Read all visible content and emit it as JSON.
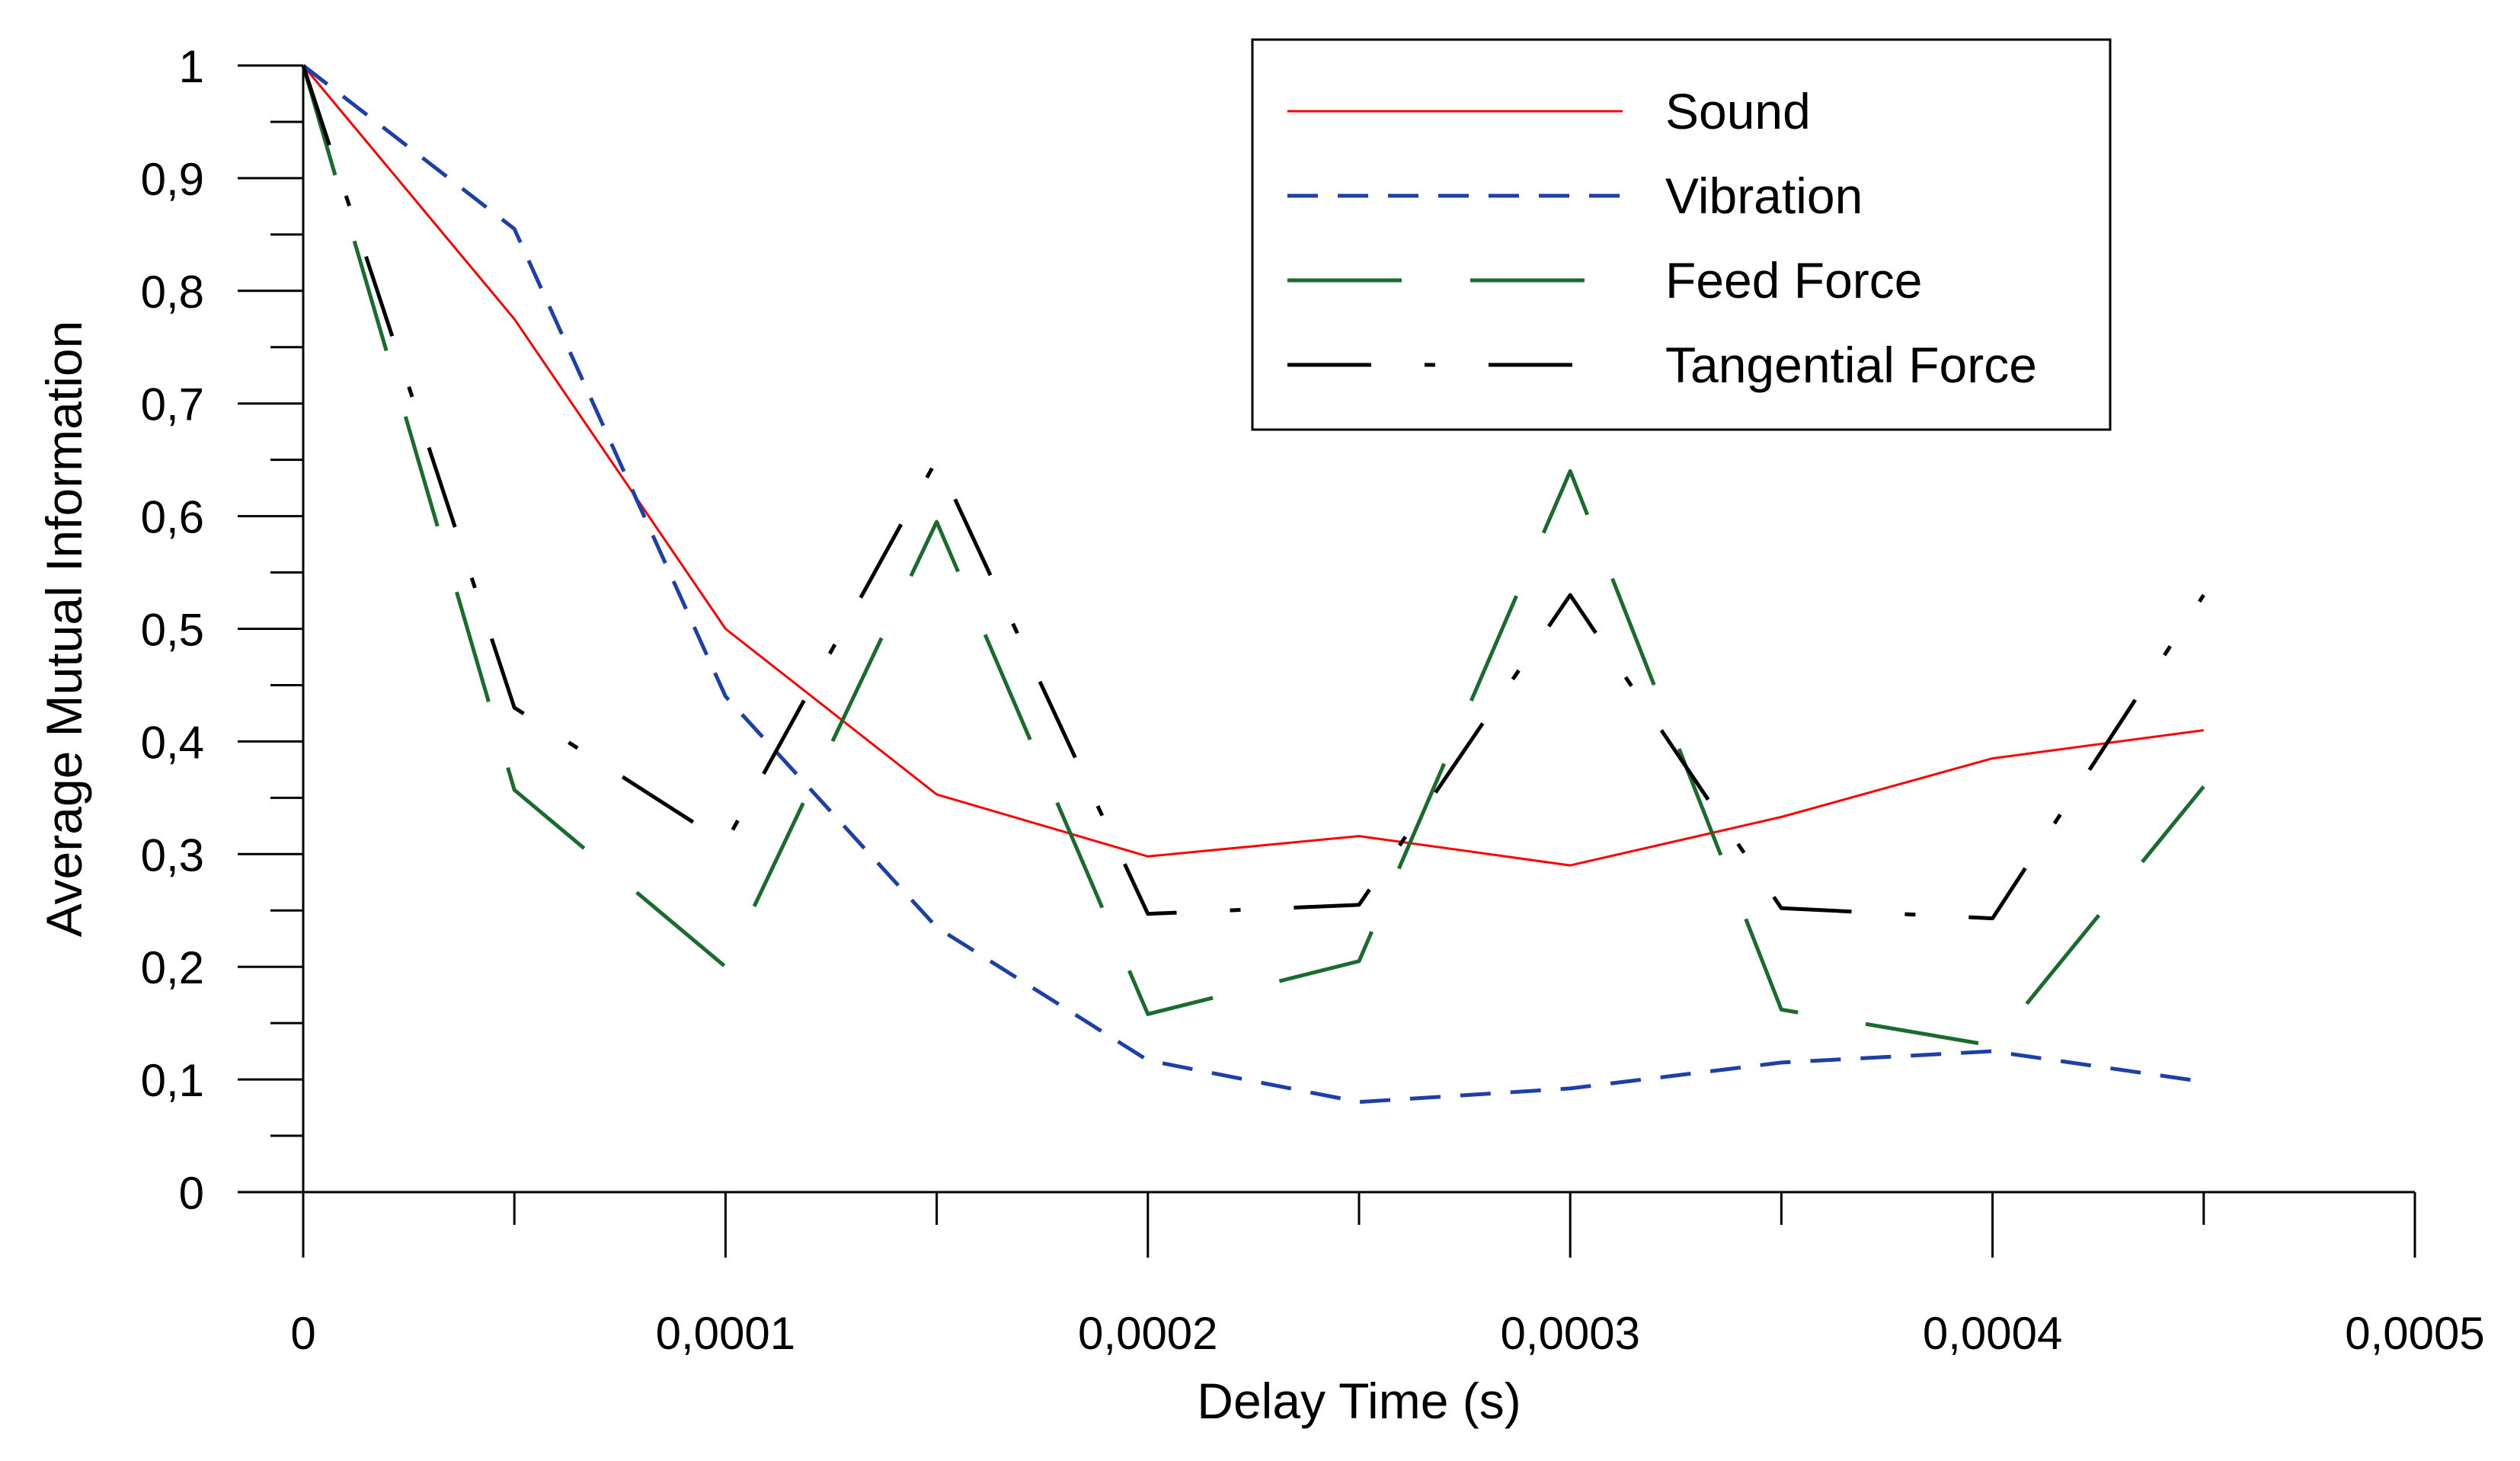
{
  "chart_data": {
    "type": "line",
    "xlabel": "Delay Time (s)",
    "ylabel": "Average Mutual Information",
    "xlim": [
      0,
      0.0005
    ],
    "ylim": [
      0,
      1
    ],
    "x_ticks": [
      "0",
      "0,0001",
      "0,0002",
      "0,0003",
      "0,0004",
      "0,0005"
    ],
    "y_ticks": [
      "0",
      "0,1",
      "0,2",
      "0,3",
      "0,4",
      "0,5",
      "0,6",
      "0,7",
      "0,8",
      "0,9",
      "1"
    ],
    "grid": false,
    "legend_position": "top-right",
    "x": [
      0,
      5e-05,
      0.0001,
      0.00015,
      0.0002,
      0.00025,
      0.0003,
      0.00035,
      0.0004,
      0.00045
    ],
    "series": [
      {
        "name": "Sound",
        "color": "#ff0000",
        "dash": "solid",
        "values": [
          1.0,
          0.775,
          0.5,
          0.353,
          0.298,
          0.316,
          0.29,
          0.333,
          0.385,
          0.41
        ]
      },
      {
        "name": "Vibration",
        "color": "#1c3fa8",
        "dash": "dashed",
        "values": [
          1.0,
          0.855,
          0.44,
          0.235,
          0.117,
          0.08,
          0.092,
          0.115,
          0.125,
          0.098
        ]
      },
      {
        "name": "Feed Force",
        "color": "#1a6b2e",
        "dash": "long-dash",
        "values": [
          1.0,
          0.357,
          0.2,
          0.595,
          0.158,
          0.205,
          0.64,
          0.162,
          0.13,
          0.36
        ]
      },
      {
        "name": "Tangential Force",
        "color": "#000000",
        "dash": "dash-dot",
        "values": [
          1.0,
          0.43,
          0.31,
          0.65,
          0.247,
          0.255,
          0.53,
          0.252,
          0.243,
          0.53
        ]
      }
    ]
  }
}
